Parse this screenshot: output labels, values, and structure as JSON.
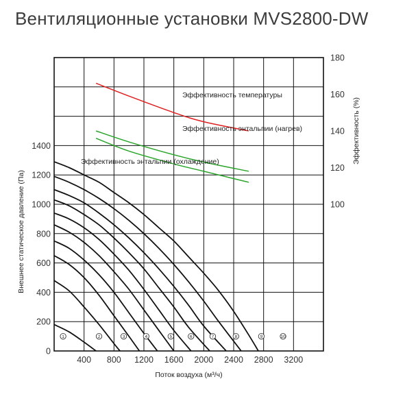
{
  "title": "Вентиляционные установки MVS2800-DW",
  "chart_data": {
    "type": "line",
    "xlabel": "Поток воздуха (м³/ч)",
    "ylabel_left": "Внешнее статическое давление (Па)",
    "ylabel_right": "Эффективность (%)",
    "xlim": [
      0,
      3600
    ],
    "ylim_left": [
      0,
      2000
    ],
    "ylim_right": [
      20,
      180
    ],
    "x_ticks": [
      "400",
      "800",
      "1200",
      "1600",
      "2000",
      "2400",
      "2800",
      "3200"
    ],
    "y_left_ticks": [
      "0",
      "200",
      "400",
      "600",
      "800",
      "1000",
      "1200",
      "1400"
    ],
    "y_right_ticks": [
      "100",
      "120",
      "140",
      "160",
      "180"
    ],
    "grid": true,
    "efficiency_series": [
      {
        "name": "Эффективность температуры",
        "color": "#e02020",
        "x": [
          560,
          1000,
          1600,
          2000,
          2600
        ],
        "y": [
          166,
          159,
          150,
          145,
          140
        ]
      },
      {
        "name": "Эффективность энтальпии (нагрев)",
        "color": "#2aa52a",
        "x": [
          560,
          1000,
          1600,
          2000,
          2600
        ],
        "y": [
          140,
          134,
          127,
          123,
          118
        ]
      },
      {
        "name": "Эффективность энтальпии (охлаждение)",
        "color": "#2aa52a",
        "x": [
          560,
          1000,
          1600,
          2000,
          2600
        ],
        "y": [
          136,
          129,
          122,
          118,
          112
        ]
      }
    ],
    "pressure_curves": [
      {
        "label": "1",
        "x": [
          0,
          200,
          400,
          560
        ],
        "y": [
          180,
          130,
          60,
          0
        ]
      },
      {
        "label": "2",
        "x": [
          0,
          200,
          400,
          600,
          800,
          880
        ],
        "y": [
          480,
          410,
          300,
          180,
          50,
          0
        ]
      },
      {
        "label": "3",
        "x": [
          0,
          200,
          400,
          600,
          800,
          1000,
          1140
        ],
        "y": [
          650,
          590,
          500,
          380,
          240,
          100,
          0
        ]
      },
      {
        "label": "4",
        "x": [
          0,
          200,
          400,
          600,
          800,
          1000,
          1200,
          1380
        ],
        "y": [
          750,
          700,
          620,
          520,
          400,
          260,
          120,
          0
        ]
      },
      {
        "label": "5",
        "x": [
          0,
          200,
          400,
          600,
          800,
          1000,
          1200,
          1400,
          1600
        ],
        "y": [
          860,
          810,
          740,
          650,
          540,
          420,
          280,
          140,
          0
        ]
      },
      {
        "label": "6",
        "x": [
          0,
          200,
          400,
          600,
          800,
          1000,
          1200,
          1400,
          1600,
          1830
        ],
        "y": [
          940,
          900,
          840,
          760,
          660,
          550,
          420,
          280,
          140,
          0
        ]
      },
      {
        "label": "7",
        "x": [
          0,
          200,
          400,
          600,
          800,
          1000,
          1200,
          1400,
          1600,
          1800,
          2080
        ],
        "y": [
          1030,
          990,
          930,
          860,
          770,
          670,
          560,
          430,
          300,
          160,
          0
        ]
      },
      {
        "label": "8",
        "x": [
          0,
          200,
          400,
          600,
          800,
          1000,
          1200,
          1400,
          1600,
          1800,
          2000,
          2300
        ],
        "y": [
          1100,
          1060,
          1010,
          940,
          860,
          770,
          670,
          560,
          440,
          310,
          170,
          0
        ]
      },
      {
        "label": "9",
        "x": [
          0,
          200,
          400,
          600,
          800,
          1000,
          1200,
          1400,
          1600,
          1800,
          2000,
          2200,
          2500
        ],
        "y": [
          1190,
          1150,
          1100,
          1040,
          970,
          890,
          800,
          700,
          590,
          470,
          340,
          200,
          0
        ]
      },
      {
        "label": "10",
        "x": [
          0,
          200,
          400,
          600,
          800,
          1000,
          1200,
          1400,
          1600,
          1800,
          2000,
          2200,
          2400,
          2600,
          2730
        ],
        "y": [
          1290,
          1250,
          1200,
          1150,
          1080,
          1010,
          930,
          840,
          750,
          640,
          530,
          410,
          270,
          110,
          0
        ]
      }
    ],
    "curve_markers": [
      "1",
      "2",
      "3",
      "4",
      "5",
      "6",
      "7",
      "8",
      "9",
      "10"
    ],
    "marker_positions_flow": [
      120,
      600,
      930,
      1230,
      1560,
      1830,
      2120,
      2430,
      2770,
      3060
    ],
    "marker_pressure": 100
  }
}
